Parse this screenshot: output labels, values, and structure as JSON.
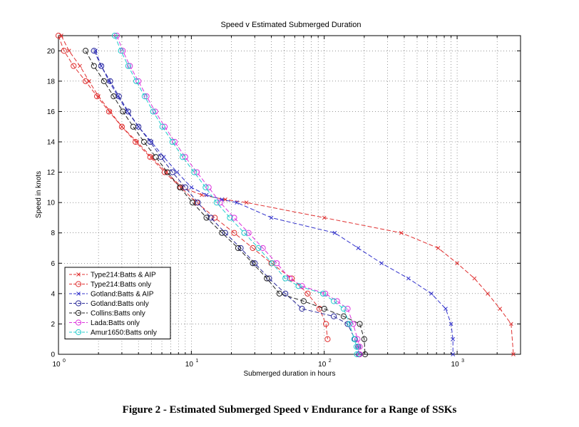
{
  "caption": "Figure 2 - Estimated Submerged Speed v Endurance for a Range of SSKs",
  "chart_data": {
    "type": "line",
    "title": "Speed v Estimated Submerged Duration",
    "xlabel": "Submerged duration in hours",
    "ylabel": "Speed in knots",
    "xscale": "log",
    "xlim": [
      1,
      3000
    ],
    "ylim": [
      0,
      21
    ],
    "x_ticks": [
      1,
      10,
      100,
      1000
    ],
    "x_tick_labels": [
      "10",
      "10",
      "10",
      "10"
    ],
    "x_tick_exponents": [
      "0",
      "1",
      "2",
      "3"
    ],
    "y_ticks": [
      0,
      2,
      4,
      6,
      8,
      10,
      12,
      14,
      16,
      18,
      20
    ],
    "y_tick_labels": [
      "0",
      "2",
      "4",
      "6",
      "8",
      "10",
      "12",
      "14",
      "16",
      "18",
      "20"
    ],
    "grid": true,
    "legend_position": "bottom-left",
    "series": [
      {
        "name": "Type214:Batts & AIP",
        "color": "#e03030",
        "marker": "x",
        "x": [
          1.05,
          1.2,
          1.45,
          1.7,
          2.0,
          2.45,
          3.0,
          3.9,
          5.0,
          6.5,
          8.5,
          12.0,
          18.0,
          26.0,
          100.0,
          380.0,
          720.0,
          1000.0,
          1350.0,
          1700.0,
          2100.0,
          2550.0,
          2650.0
        ],
        "y": [
          21,
          20,
          19,
          18,
          17,
          16,
          15,
          14,
          13,
          12,
          11,
          10.5,
          10.2,
          10.0,
          9,
          8,
          7,
          6,
          5,
          4,
          3,
          2,
          0
        ]
      },
      {
        "name": "Type214:Batts only",
        "color": "#e03030",
        "marker": "o",
        "x": [
          1.0,
          1.1,
          1.3,
          1.6,
          1.95,
          2.4,
          3.0,
          3.8,
          4.9,
          6.3,
          8.3,
          11.0,
          15.0,
          21.0,
          29.0,
          40.0,
          57.0,
          75.0,
          92.0,
          103.0,
          106.0
        ],
        "y": [
          21,
          20,
          19,
          18,
          17,
          16,
          15,
          14,
          13,
          12,
          11,
          10,
          9,
          8,
          7,
          6,
          5,
          4,
          3,
          2,
          1
        ]
      },
      {
        "name": "Gotland:Batts & AIP",
        "color": "#3333cc",
        "marker": "x",
        "x": [
          1.9,
          2.1,
          2.4,
          2.8,
          3.3,
          4.0,
          5.0,
          6.2,
          7.8,
          10.0,
          13.0,
          17.0,
          22.0,
          40.0,
          120.0,
          180.0,
          270.0,
          430.0,
          640.0,
          820.0,
          900.0,
          930.0,
          930.0
        ],
        "y": [
          20,
          19,
          18,
          17,
          16,
          15,
          14,
          13,
          12,
          11,
          10.5,
          10.2,
          10.0,
          9,
          8,
          7,
          6,
          5,
          4,
          3,
          2,
          1,
          0
        ]
      },
      {
        "name": "Gotland:Batts only",
        "color": "#2a2a99",
        "marker": "o",
        "x": [
          1.85,
          2.1,
          2.45,
          2.85,
          3.35,
          4.0,
          4.9,
          5.9,
          7.2,
          9.0,
          11.2,
          14.0,
          18.0,
          23.5,
          30.0,
          38.5,
          51.0,
          68.0,
          118.0,
          150.0,
          170.0,
          180.0,
          182.0
        ],
        "y": [
          20,
          19,
          18,
          17,
          16,
          15,
          14,
          13,
          12,
          11,
          10,
          9,
          8,
          7,
          6,
          5,
          4,
          3,
          2.5,
          2,
          1,
          0.5,
          0
        ]
      },
      {
        "name": "Collins:Batts only",
        "color": "#222222",
        "marker": "o",
        "x": [
          1.6,
          1.85,
          2.2,
          2.6,
          3.05,
          3.65,
          4.4,
          5.4,
          6.6,
          8.2,
          10.2,
          13.0,
          17.0,
          22.5,
          29.0,
          37.0,
          46.0,
          70.0,
          100.0,
          140.0,
          185.0,
          200.0,
          203.0
        ],
        "y": [
          20,
          19,
          18,
          17,
          16,
          15,
          14,
          13,
          12,
          11,
          10,
          9,
          8,
          7,
          6,
          5,
          4,
          3.5,
          3,
          2.5,
          2,
          1,
          0
        ]
      },
      {
        "name": "Lada:Batts only",
        "color": "#dd33dd",
        "marker": "o",
        "x": [
          2.75,
          3.05,
          3.45,
          4.0,
          4.6,
          5.35,
          6.3,
          7.5,
          9.0,
          11.0,
          13.5,
          16.5,
          21.0,
          27.0,
          34.5,
          44.0,
          55.0,
          68.0,
          102.0,
          125.0,
          150.0,
          165.0,
          178.0,
          185.0,
          185.0
        ],
        "y": [
          21,
          20,
          19,
          18,
          17,
          16,
          15,
          14,
          13,
          12,
          11,
          10,
          9,
          8,
          7,
          6,
          5,
          4.5,
          4,
          3.5,
          3,
          2,
          1,
          0.5,
          0
        ]
      },
      {
        "name": "Amur1650:Batts only",
        "color": "#22cccc",
        "marker": "o",
        "x": [
          2.65,
          2.95,
          3.35,
          3.85,
          4.45,
          5.15,
          6.05,
          7.2,
          8.6,
          10.5,
          12.8,
          15.5,
          19.5,
          25.0,
          32.0,
          40.5,
          51.0,
          64.0,
          98.0,
          118.0,
          140.0,
          155.0,
          168.0,
          175.0,
          176.0
        ],
        "y": [
          21,
          20,
          19,
          18,
          17,
          16,
          15,
          14,
          13,
          12,
          11,
          10,
          9,
          8,
          7,
          6,
          5,
          4.5,
          4,
          3.5,
          3,
          2,
          1,
          0.5,
          0
        ]
      }
    ]
  }
}
